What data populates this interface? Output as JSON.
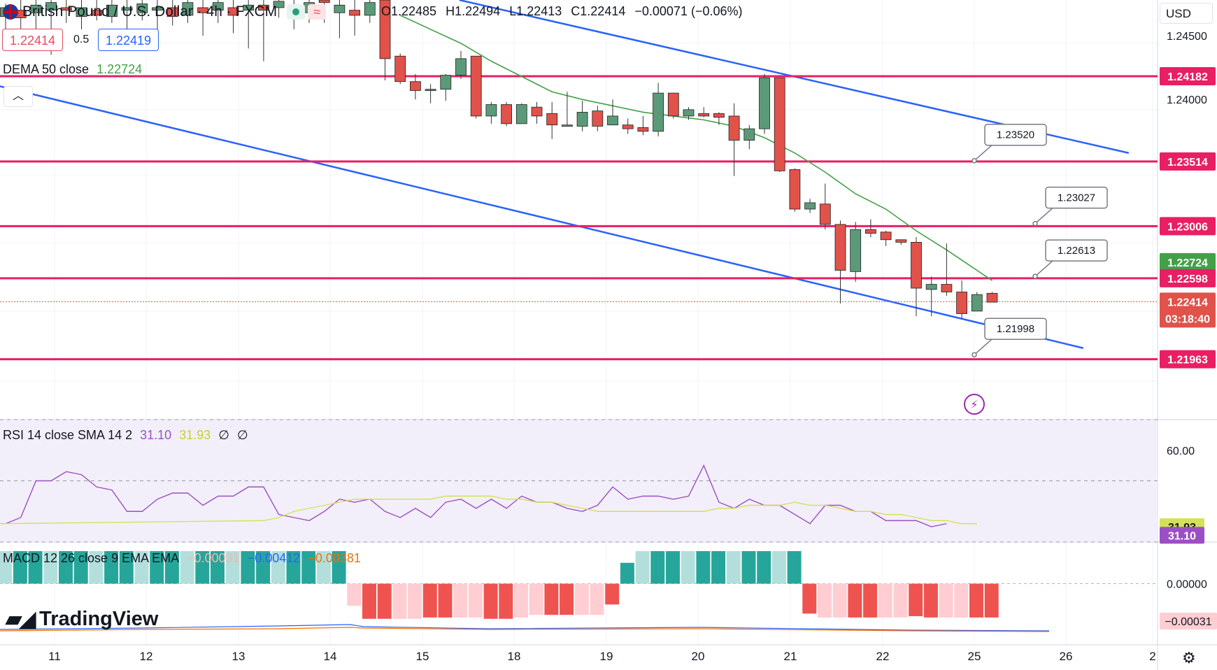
{
  "header": {
    "symbol_title": "British Pound / U.S. Dollar · 4h · FXCM",
    "open": "O1.22485",
    "high": "H1.22494",
    "low": "L1.22413",
    "close": "C1.22414",
    "change": "−0.00071 (−0.06%)",
    "currency": "USD"
  },
  "trade": {
    "sell_price": "1.22414",
    "spread": "0.5",
    "buy_price": "1.22419"
  },
  "dema_legend": {
    "label": "DEMA 50 close",
    "value": "1.22724"
  },
  "rsi_legend": {
    "label": "RSI 14 close SMA 14 2",
    "rsi": "31.10",
    "sma": "31.93",
    "extra1": "∅",
    "extra2": "∅"
  },
  "macd_legend": {
    "label": "MACD 12 26 close 9 EMA EMA",
    "hist": "−0.00031",
    "macd": "−0.00412",
    "signal": "−0.00381"
  },
  "branding": {
    "logo_text": "TradingView"
  },
  "colors": {
    "up": "#5b9a78",
    "down": "#e0524a",
    "resistance": "#e91e63",
    "channel": "#2962ff",
    "dema": "#43a047",
    "rsi": "#9c4fc4",
    "rsi_sma": "#d4e157",
    "macd": "#2962ff",
    "signal": "#ff6d00"
  },
  "chart_data": [
    {
      "type": "candlestick",
      "title": "British Pound / U.S. Dollar · 4h · FXCM",
      "x_ticks": [
        "11",
        "12",
        "13",
        "14",
        "15",
        "18",
        "19",
        "20",
        "21",
        "22",
        "25",
        "26",
        "2"
      ],
      "y_ticks": [
        "1.24500",
        "1.24000"
      ],
      "ylim": [
        1.215,
        1.2478
      ],
      "candles": [
        {
          "o": 1.2465,
          "h": 1.2475,
          "l": 1.2455,
          "c": 1.2472
        },
        {
          "o": 1.247,
          "h": 1.2478,
          "l": 1.2455,
          "c": 1.2464
        },
        {
          "o": 1.2468,
          "h": 1.2478,
          "l": 1.244,
          "c": 1.2474
        },
        {
          "o": 1.247,
          "h": 1.2478,
          "l": 1.2435,
          "c": 1.2476
        },
        {
          "o": 1.2472,
          "h": 1.2478,
          "l": 1.246,
          "c": 1.247
        },
        {
          "o": 1.2465,
          "h": 1.2478,
          "l": 1.2455,
          "c": 1.2472
        },
        {
          "o": 1.247,
          "h": 1.2478,
          "l": 1.2462,
          "c": 1.2466
        },
        {
          "o": 1.2465,
          "h": 1.2478,
          "l": 1.246,
          "c": 1.2474
        },
        {
          "o": 1.247,
          "h": 1.2478,
          "l": 1.2455,
          "c": 1.2472
        },
        {
          "o": 1.2468,
          "h": 1.2478,
          "l": 1.2462,
          "c": 1.2475
        },
        {
          "o": 1.247,
          "h": 1.2478,
          "l": 1.2455,
          "c": 1.2472
        },
        {
          "o": 1.2472,
          "h": 1.2478,
          "l": 1.2458,
          "c": 1.2465
        },
        {
          "o": 1.2466,
          "h": 1.2478,
          "l": 1.246,
          "c": 1.2476
        },
        {
          "o": 1.2472,
          "h": 1.2478,
          "l": 1.245,
          "c": 1.2468
        },
        {
          "o": 1.247,
          "h": 1.2478,
          "l": 1.246,
          "c": 1.2476
        },
        {
          "o": 1.2472,
          "h": 1.2478,
          "l": 1.2452,
          "c": 1.2466
        },
        {
          "o": 1.247,
          "h": 1.2478,
          "l": 1.244,
          "c": 1.2474
        },
        {
          "o": 1.2474,
          "h": 1.2478,
          "l": 1.243,
          "c": 1.247
        },
        {
          "o": 1.2472,
          "h": 1.2478,
          "l": 1.2464,
          "c": 1.2477
        },
        {
          "o": 1.2474,
          "h": 1.2478,
          "l": 1.2455,
          "c": 1.2468
        },
        {
          "o": 1.2468,
          "h": 1.2478,
          "l": 1.246,
          "c": 1.2476
        },
        {
          "o": 1.2478,
          "h": 1.2478,
          "l": 1.246,
          "c": 1.2476
        },
        {
          "o": 1.2468,
          "h": 1.2478,
          "l": 1.2448,
          "c": 1.2474
        },
        {
          "o": 1.247,
          "h": 1.2478,
          "l": 1.245,
          "c": 1.2466
        },
        {
          "o": 1.2466,
          "h": 1.2478,
          "l": 1.246,
          "c": 1.2476
        },
        {
          "o": 1.2478,
          "h": 1.2478,
          "l": 1.2415,
          "c": 1.2432
        },
        {
          "o": 1.2434,
          "h": 1.2436,
          "l": 1.2412,
          "c": 1.2414
        },
        {
          "o": 1.2414,
          "h": 1.242,
          "l": 1.24,
          "c": 1.2407
        },
        {
          "o": 1.2407,
          "h": 1.2412,
          "l": 1.2397,
          "c": 1.2408
        },
        {
          "o": 1.2408,
          "h": 1.242,
          "l": 1.2399,
          "c": 1.2419
        },
        {
          "o": 1.2419,
          "h": 1.2438,
          "l": 1.2416,
          "c": 1.2432
        },
        {
          "o": 1.2434,
          "h": 1.2434,
          "l": 1.2385,
          "c": 1.2387
        },
        {
          "o": 1.2387,
          "h": 1.2398,
          "l": 1.2381,
          "c": 1.2396
        },
        {
          "o": 1.2396,
          "h": 1.2398,
          "l": 1.2379,
          "c": 1.2381
        },
        {
          "o": 1.2381,
          "h": 1.2397,
          "l": 1.2381,
          "c": 1.2396
        },
        {
          "o": 1.2394,
          "h": 1.2398,
          "l": 1.2381,
          "c": 1.2387
        },
        {
          "o": 1.2389,
          "h": 1.2398,
          "l": 1.2369,
          "c": 1.238
        },
        {
          "o": 1.238,
          "h": 1.2406,
          "l": 1.2379,
          "c": 1.238
        },
        {
          "o": 1.2379,
          "h": 1.2399,
          "l": 1.2375,
          "c": 1.239
        },
        {
          "o": 1.2391,
          "h": 1.2395,
          "l": 1.2375,
          "c": 1.2379
        },
        {
          "o": 1.238,
          "h": 1.24,
          "l": 1.238,
          "c": 1.2387
        },
        {
          "o": 1.238,
          "h": 1.2385,
          "l": 1.2373,
          "c": 1.2377
        },
        {
          "o": 1.2378,
          "h": 1.2387,
          "l": 1.2372,
          "c": 1.2375
        },
        {
          "o": 1.2375,
          "h": 1.2413,
          "l": 1.2371,
          "c": 1.2405
        },
        {
          "o": 1.2405,
          "h": 1.2405,
          "l": 1.2385,
          "c": 1.2387
        },
        {
          "o": 1.2387,
          "h": 1.2394,
          "l": 1.2384,
          "c": 1.2392
        },
        {
          "o": 1.2389,
          "h": 1.2394,
          "l": 1.2386,
          "c": 1.2387
        },
        {
          "o": 1.2389,
          "h": 1.239,
          "l": 1.238,
          "c": 1.2386
        },
        {
          "o": 1.2387,
          "h": 1.2397,
          "l": 1.234,
          "c": 1.2368
        },
        {
          "o": 1.2368,
          "h": 1.238,
          "l": 1.2361,
          "c": 1.2377
        },
        {
          "o": 1.2377,
          "h": 1.242,
          "l": 1.2373,
          "c": 1.2417
        },
        {
          "o": 1.2417,
          "h": 1.2417,
          "l": 1.2343,
          "c": 1.2344
        },
        {
          "o": 1.2345,
          "h": 1.2346,
          "l": 1.2312,
          "c": 1.2314
        },
        {
          "o": 1.2314,
          "h": 1.2322,
          "l": 1.2311,
          "c": 1.2319
        },
        {
          "o": 1.2318,
          "h": 1.2334,
          "l": 1.2298,
          "c": 1.2302
        },
        {
          "o": 1.2302,
          "h": 1.2305,
          "l": 1.224,
          "c": 1.2266
        },
        {
          "o": 1.2265,
          "h": 1.2304,
          "l": 1.2257,
          "c": 1.2298
        },
        {
          "o": 1.2298,
          "h": 1.2306,
          "l": 1.2292,
          "c": 1.2295
        },
        {
          "o": 1.2296,
          "h": 1.2297,
          "l": 1.2285,
          "c": 1.229
        },
        {
          "o": 1.229,
          "h": 1.229,
          "l": 1.2286,
          "c": 1.2288
        },
        {
          "o": 1.2288,
          "h": 1.2292,
          "l": 1.223,
          "c": 1.2252
        },
        {
          "o": 1.2251,
          "h": 1.2261,
          "l": 1.223,
          "c": 1.2255
        },
        {
          "o": 1.2255,
          "h": 1.2287,
          "l": 1.2246,
          "c": 1.2249
        },
        {
          "o": 1.2249,
          "h": 1.2258,
          "l": 1.2228,
          "c": 1.2232
        },
        {
          "o": 1.2234,
          "h": 1.2249,
          "l": 1.2234,
          "c": 1.2247
        },
        {
          "o": 1.2248,
          "h": 1.2249,
          "l": 1.2241,
          "c": 1.2241
        }
      ],
      "dema": {
        "name": "DEMA 50 close",
        "points": [
          [
            26,
            1.2466
          ],
          [
            28,
            1.2455
          ],
          [
            30,
            1.2444
          ],
          [
            32,
            1.243
          ],
          [
            34,
            1.2418
          ],
          [
            36,
            1.2406
          ],
          [
            38,
            1.24
          ],
          [
            40,
            1.2395
          ],
          [
            42,
            1.239
          ],
          [
            44,
            1.2387
          ],
          [
            46,
            1.2384
          ],
          [
            48,
            1.2379
          ],
          [
            50,
            1.237
          ],
          [
            52,
            1.2358
          ],
          [
            54,
            1.2343
          ],
          [
            56,
            1.2326
          ],
          [
            58,
            1.2314
          ],
          [
            60,
            1.2297
          ],
          [
            62,
            1.2282
          ],
          [
            64,
            1.2266
          ],
          [
            65,
            1.2258
          ]
        ]
      },
      "channel_lines": [
        {
          "x0": -1.3,
          "y0": 1.2413,
          "x1": 71,
          "y1": 1.2205
        },
        {
          "x0": 29.9,
          "y0": 1.2478,
          "x1": 74,
          "y1": 1.2358
        }
      ],
      "levels": [
        "1.24182",
        "1.23514",
        "1.23006",
        "1.22598",
        "1.21963"
      ],
      "level_values": [
        1.24182,
        1.23514,
        1.23006,
        1.22598,
        1.21963
      ],
      "callouts": [
        {
          "text": "1.23520",
          "value": 1.2352
        },
        {
          "text": "1.23027",
          "value": 1.23027
        },
        {
          "text": "1.22613",
          "value": 1.22613
        },
        {
          "text": "1.21998",
          "value": 1.21998
        }
      ],
      "axis_labels": [
        {
          "text": "1.24182",
          "kind": "level"
        },
        {
          "text": "1.23514",
          "kind": "level"
        },
        {
          "text": "1.23006",
          "kind": "level"
        },
        {
          "text": "1.22724",
          "kind": "dema"
        },
        {
          "text": "1.22598",
          "kind": "level"
        },
        {
          "text": "1.22414",
          "kind": "price"
        },
        {
          "text": "03:18:40",
          "kind": "countdown"
        },
        {
          "text": "1.21963",
          "kind": "level"
        }
      ],
      "last_price": 1.22414
    },
    {
      "type": "line",
      "title": "RSI 14 close SMA 14 2",
      "ylim": [
        30,
        70
      ],
      "y_ticks": [
        "60.00"
      ],
      "rsi": [
        36,
        38,
        50,
        50,
        53,
        52,
        48,
        47,
        40,
        40,
        44,
        46,
        46,
        42,
        45,
        45,
        48,
        48,
        39,
        38,
        37,
        40,
        44,
        43,
        44,
        40,
        38,
        41,
        38,
        43,
        44,
        41,
        44,
        41,
        45,
        43,
        43,
        41,
        40,
        42,
        48,
        44,
        45,
        45,
        44,
        45,
        55,
        43,
        41,
        44,
        42,
        42,
        39,
        36,
        42,
        42,
        40,
        40,
        37,
        37,
        37,
        35,
        36
      ],
      "rsi_sma": [
        37,
        38,
        40,
        41,
        42,
        43,
        44,
        44,
        44,
        44,
        44,
        44,
        45,
        45,
        45,
        45,
        44,
        44,
        43,
        43,
        42,
        41,
        40,
        40,
        40,
        40,
        40,
        40,
        40,
        40,
        41,
        41,
        42,
        42,
        42,
        43,
        42,
        42,
        41,
        40,
        40,
        39,
        39,
        38,
        37,
        37,
        36,
        36
      ],
      "rsi_sma_start": 17,
      "last_rsi": "31.10",
      "last_sma": "31.93"
    },
    {
      "type": "bar",
      "title": "MACD 12 26 close 9 EMA EMA",
      "y_ticks": [
        "0.00000"
      ],
      "ylim": [
        -0.0047,
        0.0032
      ],
      "histogram": [
        0.0025,
        0.0025,
        0.0025,
        0.0025,
        0.0025,
        0.0025,
        0.0025,
        0.0025,
        0.0025,
        0.0025,
        0.0025,
        0.0025,
        0.0025,
        0.0025,
        0.0025,
        0.0025,
        0.0025,
        0.0025,
        0.0025,
        0.0025,
        0.0025,
        0.0025,
        0.0025,
        -0.0017,
        -0.0027,
        -0.0027,
        -0.0027,
        -0.0027,
        -0.0026,
        -0.0026,
        -0.0026,
        -0.0026,
        -0.0027,
        -0.0027,
        -0.0026,
        -0.0024,
        -0.0024,
        -0.0024,
        -0.0024,
        -0.0024,
        -0.0016,
        0.0016,
        0.0025,
        0.0025,
        0.0025,
        0.0025,
        0.0025,
        0.0025,
        0.0025,
        0.0025,
        0.0025,
        0.0025,
        0.0025,
        -0.0023,
        -0.0026,
        -0.0026,
        -0.0026,
        -0.0026,
        -0.0026,
        -0.0026,
        -0.0025,
        -0.0026,
        -0.0026,
        -0.0026,
        -0.0026,
        -0.0026
      ],
      "hist_label": "−0.00031"
    }
  ]
}
